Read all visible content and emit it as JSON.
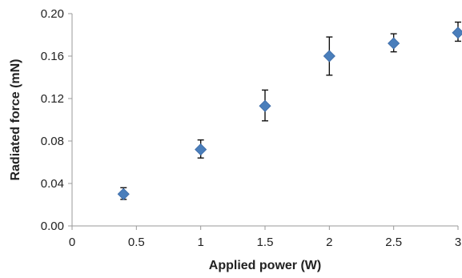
{
  "chart_data": {
    "type": "scatter",
    "title": "",
    "xlabel": "Applied power (W)",
    "ylabel": "Radiated force (mN)",
    "xlim": [
      0,
      3
    ],
    "ylim": [
      0,
      0.2
    ],
    "xticks": [
      "0",
      "0.5",
      "1",
      "1.5",
      "2",
      "2.5",
      "3"
    ],
    "yticks": [
      "0.00",
      "0.04",
      "0.08",
      "0.12",
      "0.16",
      "0.20"
    ],
    "grid": false,
    "legend": "none",
    "marker_color": "#4a7ebb",
    "errorbar_color": "#111111",
    "series": [
      {
        "x": [
          0.4,
          1.0,
          1.5,
          2.0,
          2.5,
          3.0
        ],
        "y": [
          0.03,
          0.072,
          0.113,
          0.16,
          0.172,
          0.182
        ],
        "error_low": [
          0.025,
          0.064,
          0.099,
          0.142,
          0.164,
          0.174
        ],
        "error_high": [
          0.036,
          0.081,
          0.128,
          0.178,
          0.181,
          0.192
        ]
      }
    ]
  }
}
